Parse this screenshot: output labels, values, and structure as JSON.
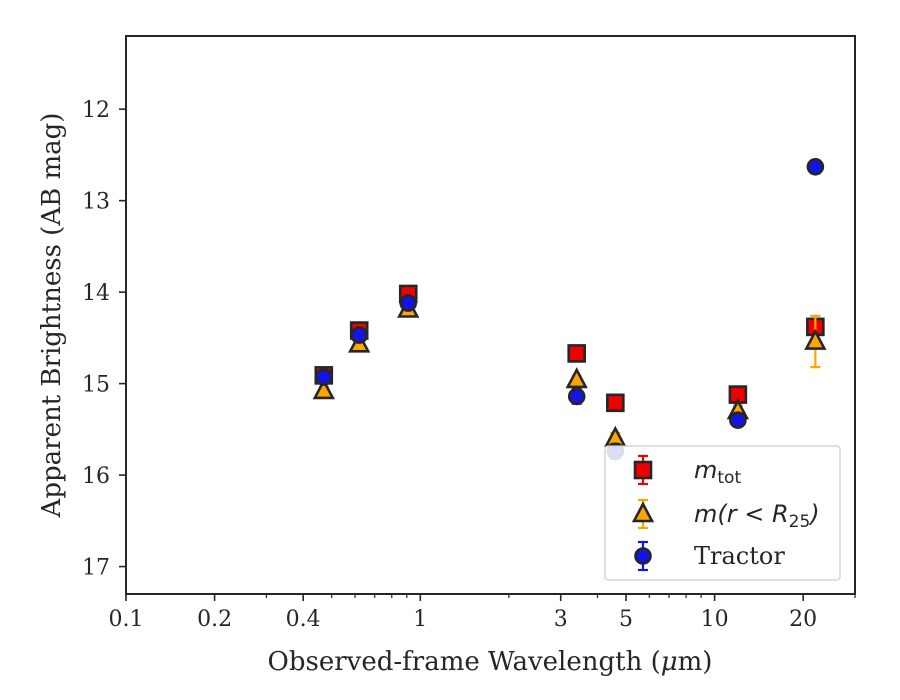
{
  "chart_data": {
    "type": "scatter",
    "title": "",
    "xlabel_main": "Observed-frame Wavelength (",
    "xlabel_greek": "μ",
    "xlabel_tail": "m)",
    "ylabel": "Apparent Brightness (AB mag)",
    "xscale": "log",
    "xlim": [
      0.1,
      30
    ],
    "ylim": [
      17.3,
      11.2
    ],
    "y_inverted": true,
    "grid": false,
    "legend_position": "lower-right",
    "x_ticks": [
      0.1,
      0.2,
      0.4,
      1,
      3,
      5,
      10,
      20
    ],
    "x_tick_labels": [
      "0.1",
      "0.2",
      "0.4",
      "1",
      "3",
      "5",
      "10",
      "20"
    ],
    "y_ticks": [
      12,
      13,
      14,
      15,
      16,
      17
    ],
    "y_tick_labels": [
      "12",
      "13",
      "14",
      "15",
      "16",
      "17"
    ],
    "series": [
      {
        "key": "mtot",
        "legend_main": "m",
        "legend_sub": "tot",
        "marker": "square",
        "face_color": "#ee0000",
        "edge_color": "#262626",
        "err_color": "#ee0000",
        "points": [
          {
            "x": 0.47,
            "y": 14.91,
            "err": 0.06
          },
          {
            "x": 0.62,
            "y": 14.42,
            "err": 0.06
          },
          {
            "x": 0.91,
            "y": 14.02,
            "err": 0.05
          },
          {
            "x": 3.4,
            "y": 14.67,
            "err": 0.05
          },
          {
            "x": 4.6,
            "y": 15.21,
            "err": 0.05
          },
          {
            "x": 12.0,
            "y": 15.12,
            "err": 0.05
          },
          {
            "x": 22.0,
            "y": 14.38,
            "err": 0.06
          }
        ]
      },
      {
        "key": "mr25",
        "legend_main": "m(r < R",
        "legend_sub": "25",
        "legend_close": ")",
        "marker": "triangle",
        "face_color": "#ffa500",
        "edge_color": "#262626",
        "err_color": "#ffa500",
        "points": [
          {
            "x": 0.47,
            "y": 15.08,
            "err": 0.04
          },
          {
            "x": 0.62,
            "y": 14.57,
            "err": 0.04
          },
          {
            "x": 0.91,
            "y": 14.19,
            "err": 0.04
          },
          {
            "x": 3.4,
            "y": 14.96,
            "err": 0.04
          },
          {
            "x": 4.6,
            "y": 15.6,
            "err": 0.06
          },
          {
            "x": 12.0,
            "y": 15.3,
            "err": 0.06
          },
          {
            "x": 22.0,
            "y": 14.54,
            "err": 0.28
          }
        ]
      },
      {
        "key": "tractor",
        "legend_main": "Tractor",
        "marker": "circle",
        "face_color": "#1414e6",
        "edge_color": "#262626",
        "err_color": "#1414e6",
        "points": [
          {
            "x": 0.47,
            "y": 14.93,
            "err": 0.04
          },
          {
            "x": 0.62,
            "y": 14.47,
            "err": 0.04
          },
          {
            "x": 0.91,
            "y": 14.12,
            "err": 0.04
          },
          {
            "x": 3.4,
            "y": 15.14,
            "err": 0.08
          },
          {
            "x": 4.6,
            "y": 15.74,
            "err": 0.08
          },
          {
            "x": 12.0,
            "y": 15.4,
            "err": 0.06
          },
          {
            "x": 22.0,
            "y": 12.63,
            "err": 0.07
          }
        ]
      }
    ]
  }
}
